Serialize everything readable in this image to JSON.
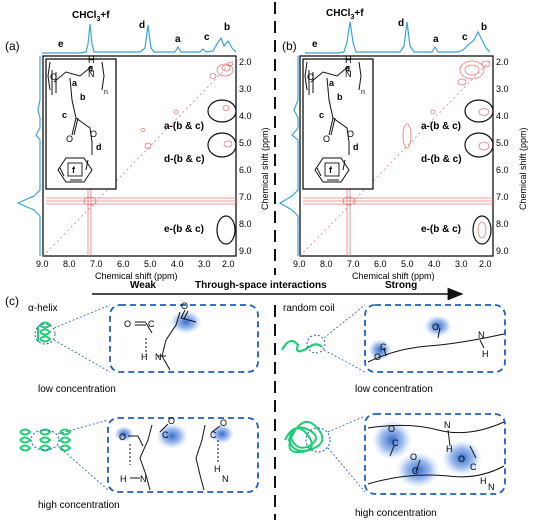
{
  "panel_a": {
    "label": "(a)",
    "sample": "CHCl3+f",
    "top_peaks": [
      "e",
      "d",
      "a",
      "c",
      "b"
    ],
    "x_ticks": [
      "9.0",
      "8.0",
      "7.0",
      "6.0",
      "5.0",
      "4.0",
      "3.0",
      "2.0"
    ],
    "x_axis_label": "Chemical shift (ppm)",
    "y_ticks": [
      "2.0",
      "3.0",
      "4.0",
      "5.0",
      "6.0",
      "7.0",
      "8.0",
      "9.0"
    ],
    "y_axis_label": "Chemical shift (ppm)",
    "structure_labels": [
      "e",
      "a",
      "b",
      "c",
      "d",
      "f"
    ],
    "structure_n": "n",
    "annotations": [
      "a-(b & c)",
      "d-(b & c)",
      "e-(b & c)"
    ]
  },
  "panel_b": {
    "label": "(b)",
    "sample": "CHCl3+f",
    "top_peaks": [
      "e",
      "d",
      "a",
      "c",
      "b"
    ],
    "x_ticks": [
      "9.0",
      "8.0",
      "7.0",
      "6.0",
      "5.0",
      "4.0",
      "3.0",
      "2.0"
    ],
    "x_axis_label": "Chemical shift (ppm)",
    "y_ticks": [
      "2.0",
      "3.0",
      "4.0",
      "5.0",
      "6.0",
      "7.0",
      "8.0",
      "9.0"
    ],
    "y_axis_label": "Chemical shift (ppm)",
    "structure_labels": [
      "e",
      "a",
      "b",
      "c",
      "d",
      "f"
    ],
    "structure_n": "n",
    "annotations": [
      "a-(b & c)",
      "d-(b & c)",
      "e-(b & c)"
    ]
  },
  "panel_c": {
    "label": "(c)",
    "arrow_weak": "Weak",
    "arrow_title": "Through-space interactions",
    "arrow_strong": "Strong",
    "alpha_helix": "α-helix",
    "random_coil": "random coil",
    "low_conc": "low concentration",
    "high_conc": "high concentration",
    "atoms": {
      "O": "O",
      "C": "C",
      "H": "H",
      "N": "N"
    }
  },
  "colors": {
    "spectrum_blue": "#3ba3dc",
    "contour_red": "#e87a7a",
    "dash_blue": "#1f5fbf",
    "polymer_green": "#22cc77",
    "glow_blue": "#2b62c9"
  }
}
